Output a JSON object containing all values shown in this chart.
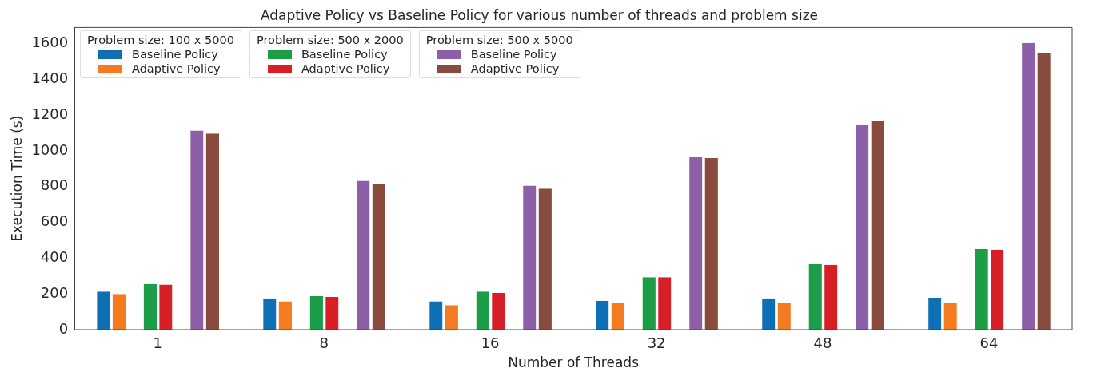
{
  "chart_data": {
    "type": "bar",
    "title": "Adaptive Policy vs Baseline Policy for various number of threads and problem size",
    "xlabel": "Number of Threads",
    "ylabel": "Execution Time (s)",
    "categories": [
      "1",
      "8",
      "16",
      "32",
      "48",
      "64"
    ],
    "series": [
      {
        "name": "Baseline Policy",
        "color": "#0f6fb5",
        "values": [
          213,
          175,
          158,
          162,
          175,
          179
        ]
      },
      {
        "name": "Adaptive Policy",
        "color": "#f47b20",
        "values": [
          200,
          158,
          137,
          149,
          153,
          149
        ]
      },
      {
        "name": "Baseline Policy",
        "color": "#1c9e48",
        "values": [
          256,
          188,
          213,
          294,
          367,
          452
        ]
      },
      {
        "name": "Adaptive Policy",
        "color": "#d71f27",
        "values": [
          252,
          183,
          205,
          294,
          363,
          448
        ]
      },
      {
        "name": "Baseline Policy",
        "color": "#8c5fa8",
        "values": [
          1114,
          832,
          806,
          964,
          1148,
          1604
        ]
      },
      {
        "name": "Adaptive Policy",
        "color": "#884b3e",
        "values": [
          1097,
          815,
          789,
          960,
          1165,
          1545
        ]
      }
    ],
    "legend_title": [
      "Problem size: 100 x 5000",
      "Problem size: 500 x 2000",
      "Problem size: 500 x 5000"
    ],
    "legend": "top left",
    "grid": false,
    "ylim": [
      0,
      1690
    ],
    "yticks": [
      0,
      200,
      400,
      600,
      800,
      1000,
      1200,
      1400,
      1600
    ]
  }
}
